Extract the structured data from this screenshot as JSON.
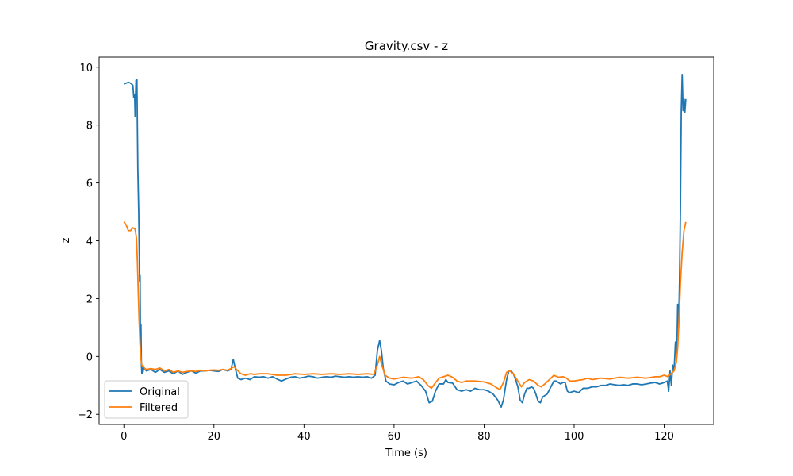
{
  "chart_data": {
    "type": "line",
    "title": "Gravity.csv - z",
    "xlabel": "Time (s)",
    "ylabel": "z",
    "xlim": [
      -5.5,
      131
    ],
    "ylim": [
      -2.35,
      10.35
    ],
    "xticks": [
      0,
      20,
      40,
      60,
      80,
      100,
      120
    ],
    "yticks": [
      -2,
      0,
      2,
      4,
      6,
      8,
      10
    ],
    "grid": false,
    "legend_position": "lower-left",
    "series": [
      {
        "name": "Original",
        "color": "#1f77b4",
        "points": [
          [
            0,
            9.42
          ],
          [
            0.5,
            9.45
          ],
          [
            1,
            9.48
          ],
          [
            1.5,
            9.45
          ],
          [
            2,
            9.38
          ],
          [
            2.2,
            8.95
          ],
          [
            2.4,
            9.05
          ],
          [
            2.5,
            8.3
          ],
          [
            2.6,
            9.0
          ],
          [
            2.7,
            9.55
          ],
          [
            2.8,
            8.9
          ],
          [
            2.9,
            9.58
          ],
          [
            3.0,
            8.0
          ],
          [
            3.1,
            6.5
          ],
          [
            3.3,
            5.0
          ],
          [
            3.5,
            2.6
          ],
          [
            3.6,
            2.8
          ],
          [
            3.7,
            -0.1
          ],
          [
            3.8,
            1.1
          ],
          [
            3.9,
            -0.3
          ],
          [
            4.0,
            -0.6
          ],
          [
            4.3,
            -0.35
          ],
          [
            5,
            -0.5
          ],
          [
            6,
            -0.45
          ],
          [
            7,
            -0.55
          ],
          [
            8,
            -0.45
          ],
          [
            9,
            -0.55
          ],
          [
            10,
            -0.5
          ],
          [
            11,
            -0.6
          ],
          [
            12,
            -0.5
          ],
          [
            13,
            -0.62
          ],
          [
            14,
            -0.55
          ],
          [
            15,
            -0.5
          ],
          [
            16,
            -0.58
          ],
          [
            17,
            -0.5
          ],
          [
            18,
            -0.5
          ],
          [
            19,
            -0.48
          ],
          [
            20,
            -0.5
          ],
          [
            21,
            -0.52
          ],
          [
            22,
            -0.45
          ],
          [
            23,
            -0.5
          ],
          [
            23.8,
            -0.45
          ],
          [
            24.3,
            -0.1
          ],
          [
            24.8,
            -0.45
          ],
          [
            25.3,
            -0.75
          ],
          [
            26,
            -0.8
          ],
          [
            27,
            -0.75
          ],
          [
            28,
            -0.8
          ],
          [
            29,
            -0.7
          ],
          [
            30,
            -0.72
          ],
          [
            31,
            -0.7
          ],
          [
            32,
            -0.75
          ],
          [
            33,
            -0.7
          ],
          [
            34,
            -0.78
          ],
          [
            35,
            -0.85
          ],
          [
            36,
            -0.78
          ],
          [
            37,
            -0.72
          ],
          [
            38,
            -0.7
          ],
          [
            39,
            -0.75
          ],
          [
            40,
            -0.72
          ],
          [
            41,
            -0.68
          ],
          [
            42,
            -0.7
          ],
          [
            43,
            -0.75
          ],
          [
            44,
            -0.72
          ],
          [
            45,
            -0.7
          ],
          [
            46,
            -0.72
          ],
          [
            47,
            -0.68
          ],
          [
            48,
            -0.7
          ],
          [
            49,
            -0.72
          ],
          [
            50,
            -0.7
          ],
          [
            51,
            -0.72
          ],
          [
            52,
            -0.7
          ],
          [
            53,
            -0.72
          ],
          [
            54,
            -0.7
          ],
          [
            55,
            -0.75
          ],
          [
            55.8,
            -0.65
          ],
          [
            56.3,
            0.2
          ],
          [
            56.8,
            0.55
          ],
          [
            57.2,
            0.2
          ],
          [
            57.6,
            -0.4
          ],
          [
            58.2,
            -0.85
          ],
          [
            59,
            -0.95
          ],
          [
            60,
            -0.98
          ],
          [
            61,
            -0.9
          ],
          [
            62,
            -0.85
          ],
          [
            63,
            -0.95
          ],
          [
            64,
            -0.9
          ],
          [
            65,
            -0.85
          ],
          [
            66,
            -1.0
          ],
          [
            67,
            -1.2
          ],
          [
            67.8,
            -1.6
          ],
          [
            68.5,
            -1.55
          ],
          [
            69.2,
            -1.2
          ],
          [
            70,
            -0.95
          ],
          [
            71,
            -0.95
          ],
          [
            71.5,
            -0.8
          ],
          [
            72,
            -0.9
          ],
          [
            73,
            -0.92
          ],
          [
            74,
            -1.15
          ],
          [
            75,
            -1.2
          ],
          [
            76,
            -1.15
          ],
          [
            77,
            -1.2
          ],
          [
            78,
            -1.1
          ],
          [
            79,
            -1.15
          ],
          [
            80,
            -1.15
          ],
          [
            81,
            -1.2
          ],
          [
            82,
            -1.3
          ],
          [
            83,
            -1.5
          ],
          [
            83.8,
            -1.75
          ],
          [
            84.3,
            -1.5
          ],
          [
            85,
            -0.8
          ],
          [
            85.5,
            -0.5
          ],
          [
            86,
            -0.5
          ],
          [
            86.5,
            -0.6
          ],
          [
            87,
            -0.8
          ],
          [
            87.5,
            -1.05
          ],
          [
            88,
            -1.5
          ],
          [
            88.5,
            -1.6
          ],
          [
            89,
            -1.3
          ],
          [
            89.5,
            -1.1
          ],
          [
            90,
            -1.1
          ],
          [
            90.5,
            -1.05
          ],
          [
            91,
            -1.1
          ],
          [
            91.5,
            -1.3
          ],
          [
            92,
            -1.55
          ],
          [
            92.5,
            -1.6
          ],
          [
            93,
            -1.4
          ],
          [
            94,
            -1.3
          ],
          [
            95,
            -1.0
          ],
          [
            95.5,
            -0.85
          ],
          [
            96,
            -0.85
          ],
          [
            96.5,
            -0.9
          ],
          [
            97,
            -0.95
          ],
          [
            97.5,
            -0.9
          ],
          [
            98,
            -0.9
          ],
          [
            98.5,
            -1.2
          ],
          [
            99,
            -1.25
          ],
          [
            100,
            -1.2
          ],
          [
            101,
            -1.25
          ],
          [
            102,
            -1.1
          ],
          [
            103,
            -1.1
          ],
          [
            104,
            -1.05
          ],
          [
            105,
            -1.05
          ],
          [
            106,
            -1.0
          ],
          [
            107,
            -1.0
          ],
          [
            108,
            -0.95
          ],
          [
            109,
            -0.98
          ],
          [
            110,
            -1.0
          ],
          [
            111,
            -0.98
          ],
          [
            112,
            -1.0
          ],
          [
            113,
            -0.95
          ],
          [
            114,
            -0.95
          ],
          [
            115,
            -0.98
          ],
          [
            116,
            -0.95
          ],
          [
            117,
            -0.92
          ],
          [
            118,
            -0.9
          ],
          [
            119,
            -0.95
          ],
          [
            120,
            -0.9
          ],
          [
            120.7,
            -0.85
          ],
          [
            121.0,
            -1.2
          ],
          [
            121.3,
            -0.5
          ],
          [
            121.6,
            -1.0
          ],
          [
            121.9,
            -0.3
          ],
          [
            122.2,
            -0.5
          ],
          [
            122.5,
            0.5
          ],
          [
            122.8,
            0.0
          ],
          [
            123.0,
            1.8
          ],
          [
            123.2,
            1.0
          ],
          [
            123.4,
            2.5
          ],
          [
            123.6,
            5.0
          ],
          [
            123.8,
            8.5
          ],
          [
            124.0,
            9.75
          ],
          [
            124.2,
            8.5
          ],
          [
            124.4,
            8.9
          ],
          [
            124.6,
            8.45
          ],
          [
            124.8,
            8.9
          ]
        ]
      },
      {
        "name": "Filtered",
        "color": "#ff7f0e",
        "points": [
          [
            0,
            4.65
          ],
          [
            0.5,
            4.55
          ],
          [
            1,
            4.35
          ],
          [
            1.5,
            4.35
          ],
          [
            2,
            4.45
          ],
          [
            2.5,
            4.4
          ],
          [
            2.8,
            4.1
          ],
          [
            3.0,
            3.3
          ],
          [
            3.2,
            2.2
          ],
          [
            3.4,
            1.2
          ],
          [
            3.6,
            0.4
          ],
          [
            3.8,
            -0.1
          ],
          [
            4.0,
            -0.3
          ],
          [
            4.5,
            -0.4
          ],
          [
            5,
            -0.45
          ],
          [
            6,
            -0.42
          ],
          [
            7,
            -0.45
          ],
          [
            8,
            -0.4
          ],
          [
            9,
            -0.5
          ],
          [
            10,
            -0.45
          ],
          [
            11,
            -0.55
          ],
          [
            12,
            -0.5
          ],
          [
            13,
            -0.55
          ],
          [
            14,
            -0.52
          ],
          [
            15,
            -0.5
          ],
          [
            16,
            -0.52
          ],
          [
            17,
            -0.48
          ],
          [
            18,
            -0.5
          ],
          [
            19,
            -0.48
          ],
          [
            20,
            -0.47
          ],
          [
            21,
            -0.48
          ],
          [
            22,
            -0.45
          ],
          [
            23,
            -0.48
          ],
          [
            24,
            -0.4
          ],
          [
            24.5,
            -0.35
          ],
          [
            25,
            -0.45
          ],
          [
            26,
            -0.6
          ],
          [
            27,
            -0.65
          ],
          [
            28,
            -0.6
          ],
          [
            29,
            -0.62
          ],
          [
            30,
            -0.6
          ],
          [
            32,
            -0.6
          ],
          [
            34,
            -0.65
          ],
          [
            36,
            -0.65
          ],
          [
            38,
            -0.6
          ],
          [
            40,
            -0.62
          ],
          [
            42,
            -0.6
          ],
          [
            44,
            -0.62
          ],
          [
            46,
            -0.6
          ],
          [
            48,
            -0.62
          ],
          [
            50,
            -0.6
          ],
          [
            52,
            -0.62
          ],
          [
            54,
            -0.6
          ],
          [
            55.5,
            -0.62
          ],
          [
            56.3,
            -0.3
          ],
          [
            56.8,
            0.0
          ],
          [
            57.3,
            -0.3
          ],
          [
            58,
            -0.65
          ],
          [
            59,
            -0.75
          ],
          [
            60,
            -0.78
          ],
          [
            62,
            -0.72
          ],
          [
            64,
            -0.75
          ],
          [
            65.5,
            -0.7
          ],
          [
            66.5,
            -0.8
          ],
          [
            67.5,
            -1.0
          ],
          [
            68.3,
            -1.1
          ],
          [
            69,
            -0.95
          ],
          [
            70,
            -0.75
          ],
          [
            71,
            -0.7
          ],
          [
            72,
            -0.65
          ],
          [
            73,
            -0.72
          ],
          [
            74,
            -0.85
          ],
          [
            75,
            -0.9
          ],
          [
            76,
            -0.85
          ],
          [
            78,
            -0.85
          ],
          [
            80,
            -0.88
          ],
          [
            81.5,
            -0.95
          ],
          [
            82.5,
            -1.05
          ],
          [
            83.5,
            -1.15
          ],
          [
            84.3,
            -0.9
          ],
          [
            85,
            -0.55
          ],
          [
            85.7,
            -0.5
          ],
          [
            86.5,
            -0.6
          ],
          [
            87.5,
            -0.85
          ],
          [
            88.3,
            -1.05
          ],
          [
            89,
            -0.9
          ],
          [
            90,
            -0.8
          ],
          [
            91,
            -0.85
          ],
          [
            92,
            -1.0
          ],
          [
            92.7,
            -1.05
          ],
          [
            93.5,
            -0.95
          ],
          [
            94.5,
            -0.8
          ],
          [
            95.5,
            -0.65
          ],
          [
            96.5,
            -0.72
          ],
          [
            97.5,
            -0.7
          ],
          [
            98.3,
            -0.75
          ],
          [
            99,
            -0.85
          ],
          [
            100,
            -0.85
          ],
          [
            101,
            -0.82
          ],
          [
            102,
            -0.8
          ],
          [
            103,
            -0.75
          ],
          [
            104,
            -0.8
          ],
          [
            106,
            -0.75
          ],
          [
            108,
            -0.78
          ],
          [
            110,
            -0.72
          ],
          [
            112,
            -0.75
          ],
          [
            114,
            -0.72
          ],
          [
            116,
            -0.75
          ],
          [
            118,
            -0.7
          ],
          [
            119,
            -0.7
          ],
          [
            120,
            -0.65
          ],
          [
            120.8,
            -0.7
          ],
          [
            121.5,
            -0.6
          ],
          [
            122.2,
            -0.5
          ],
          [
            122.7,
            -0.2
          ],
          [
            123.0,
            0.3
          ],
          [
            123.3,
            1.3
          ],
          [
            123.6,
            2.5
          ],
          [
            124.0,
            3.6
          ],
          [
            124.4,
            4.35
          ],
          [
            124.8,
            4.65
          ]
        ]
      }
    ]
  }
}
